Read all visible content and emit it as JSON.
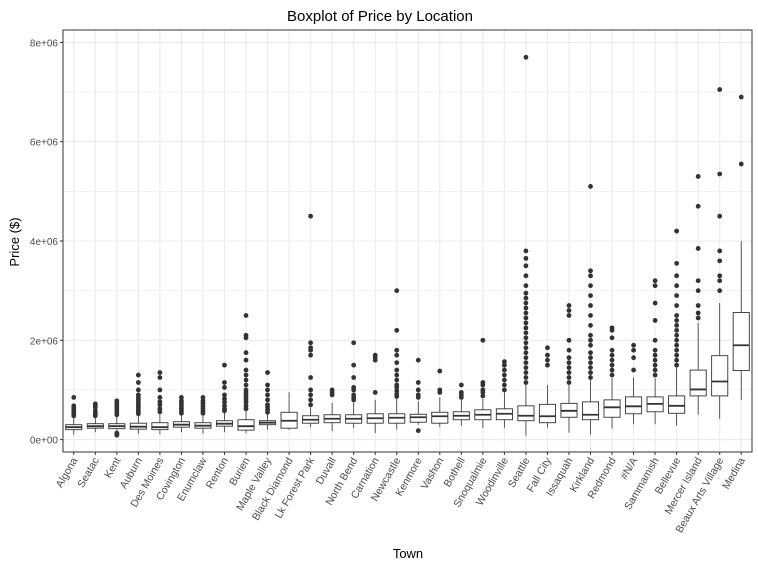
{
  "chart_data": {
    "type": "boxplot",
    "title": "Boxplot of Price by Location",
    "xlabel": "Town",
    "ylabel": "Price ($)",
    "ylim": [
      -250000,
      8250000
    ],
    "yticks": [
      0,
      2000000,
      4000000,
      6000000,
      8000000
    ],
    "ytick_labels": [
      "0e+00",
      "2e+06",
      "4e+06",
      "6e+06",
      "8e+06"
    ],
    "grid": true,
    "colors": {
      "box": "#333333",
      "outlier": "#333333",
      "grid": "#ebebeb",
      "panel_border": "#333333"
    },
    "categories": [
      "Algona",
      "Seatac",
      "Kent",
      "Auburn",
      "Des Moines",
      "Covington",
      "Enumclaw",
      "Renton",
      "Burien",
      "Maple Valley",
      "Black Diamond",
      "Lk Forest Park",
      "Duvall",
      "North Bend",
      "Carnation",
      "Newcastle",
      "Kenmore",
      "Vashon",
      "Bothell",
      "Snoqualmie",
      "Woodinville",
      "Seattle",
      "Fall City",
      "Issaquah",
      "Kirkland",
      "Redmond",
      "#N/A",
      "Sammamish",
      "Bellevue",
      "Mercer Island",
      "Beaux Arts Village",
      "Medina"
    ],
    "boxes": [
      {
        "lo": 100000,
        "q1": 200000,
        "med": 250000,
        "q3": 300000,
        "hi": 440000,
        "out": [
          480000,
          520000,
          560000,
          600000,
          640000,
          680000,
          850000
        ]
      },
      {
        "lo": 150000,
        "q1": 230000,
        "med": 270000,
        "q3": 320000,
        "hi": 450000,
        "out": [
          480000,
          530000,
          580000,
          650000,
          700000,
          720000
        ]
      },
      {
        "lo": 180000,
        "q1": 220000,
        "med": 270000,
        "q3": 320000,
        "hi": 470000,
        "out": [
          90000,
          110000,
          130000,
          500000,
          550000,
          600000,
          650000,
          700000,
          750000,
          780000
        ]
      },
      {
        "lo": 120000,
        "q1": 210000,
        "med": 260000,
        "q3": 330000,
        "hi": 500000,
        "out": [
          520000,
          560000,
          600000,
          650000,
          700000,
          750000,
          800000,
          850000,
          900000,
          1000000,
          1150000,
          1300000
        ]
      },
      {
        "lo": 110000,
        "q1": 200000,
        "med": 250000,
        "q3": 340000,
        "hi": 540000,
        "out": [
          560000,
          620000,
          700000,
          760000,
          850000,
          1000000,
          1250000,
          1350000
        ]
      },
      {
        "lo": 150000,
        "q1": 250000,
        "med": 300000,
        "q3": 360000,
        "hi": 510000,
        "out": [
          530000,
          580000,
          630000,
          680000,
          730000,
          780000,
          850000
        ]
      },
      {
        "lo": 120000,
        "q1": 230000,
        "med": 280000,
        "q3": 340000,
        "hi": 510000,
        "out": [
          530000,
          580000,
          630000,
          680000,
          730000,
          780000,
          850000
        ]
      },
      {
        "lo": 150000,
        "q1": 270000,
        "med": 320000,
        "q3": 380000,
        "hi": 550000,
        "out": [
          580000,
          620000,
          680000,
          750000,
          820000,
          900000,
          1050000,
          1150000,
          1500000
        ]
      },
      {
        "lo": 130000,
        "q1": 190000,
        "med": 270000,
        "q3": 400000,
        "hi": 600000,
        "out": [
          620000,
          680000,
          750000,
          800000,
          850000,
          900000,
          950000,
          1000000,
          1100000,
          1200000,
          1300000,
          1400000,
          1600000,
          1750000,
          2050000,
          2100000,
          2500000
        ]
      },
      {
        "lo": 200000,
        "q1": 300000,
        "med": 340000,
        "q3": 380000,
        "hi": 520000,
        "out": [
          550000,
          600000,
          650000,
          700000,
          800000,
          900000,
          1000000,
          1100000,
          1350000
        ]
      },
      {
        "lo": 200000,
        "q1": 230000,
        "med": 380000,
        "q3": 550000,
        "hi": 950000,
        "out": []
      },
      {
        "lo": 250000,
        "q1": 330000,
        "med": 400000,
        "q3": 480000,
        "hi": 650000,
        "out": [
          700000,
          800000,
          900000,
          1000000,
          1250000,
          1700000,
          1800000,
          1850000,
          1950000,
          4500000
        ]
      },
      {
        "lo": 170000,
        "q1": 340000,
        "med": 420000,
        "q3": 500000,
        "hi": 740000,
        "out": [
          900000,
          950000,
          1000000
        ]
      },
      {
        "lo": 230000,
        "q1": 330000,
        "med": 420000,
        "q3": 500000,
        "hi": 750000,
        "out": [
          800000,
          850000,
          900000,
          1000000,
          1050000,
          1250000,
          1500000,
          1950000
        ]
      },
      {
        "lo": 130000,
        "q1": 330000,
        "med": 430000,
        "q3": 520000,
        "hi": 800000,
        "out": [
          950000,
          1600000,
          1650000,
          1700000
        ]
      },
      {
        "lo": 200000,
        "q1": 330000,
        "med": 440000,
        "q3": 520000,
        "hi": 830000,
        "out": [
          870000,
          920000,
          980000,
          1050000,
          1100000,
          1200000,
          1300000,
          1400000,
          1550000,
          1700000,
          1800000,
          2200000,
          3000000
        ]
      },
      {
        "lo": 300000,
        "q1": 350000,
        "med": 450000,
        "q3": 510000,
        "hi": 770000,
        "out": [
          180000,
          850000,
          900000,
          1000000,
          1150000,
          1600000
        ]
      },
      {
        "lo": 250000,
        "q1": 330000,
        "med": 470000,
        "q3": 550000,
        "hi": 850000,
        "out": [
          950000,
          1000000,
          1380000
        ]
      },
      {
        "lo": 280000,
        "q1": 400000,
        "med": 480000,
        "q3": 560000,
        "hi": 800000,
        "out": [
          850000,
          900000,
          950000,
          1100000
        ]
      },
      {
        "lo": 230000,
        "q1": 400000,
        "med": 500000,
        "q3": 600000,
        "hi": 820000,
        "out": [
          880000,
          950000,
          1000000,
          1100000,
          1150000,
          2000000
        ]
      },
      {
        "lo": 240000,
        "q1": 400000,
        "med": 520000,
        "q3": 620000,
        "hi": 950000,
        "out": [
          1000000,
          1100000,
          1200000,
          1300000,
          1400000,
          1500000,
          1570000
        ]
      },
      {
        "lo": 80000,
        "q1": 380000,
        "med": 480000,
        "q3": 680000,
        "hi": 1130000,
        "out": [
          1150000,
          1250000,
          1350000,
          1450000,
          1550000,
          1650000,
          1750000,
          1850000,
          1950000,
          2050000,
          2150000,
          2250000,
          2350000,
          2450000,
          2550000,
          2650000,
          2750000,
          2850000,
          2950000,
          3100000,
          3300000,
          3500000,
          3650000,
          3800000,
          7700000
        ]
      },
      {
        "lo": 240000,
        "q1": 340000,
        "med": 470000,
        "q3": 710000,
        "hi": 1100000,
        "out": [
          1500000,
          1600000,
          1700000,
          1850000
        ]
      },
      {
        "lo": 140000,
        "q1": 450000,
        "med": 580000,
        "q3": 730000,
        "hi": 1100000,
        "out": [
          1150000,
          1250000,
          1350000,
          1450000,
          1550000,
          1650000,
          1800000,
          2000000,
          2500000,
          2600000,
          2700000
        ]
      },
      {
        "lo": 100000,
        "q1": 400000,
        "med": 500000,
        "q3": 760000,
        "hi": 1200000,
        "out": [
          1250000,
          1350000,
          1450000,
          1550000,
          1650000,
          1750000,
          1900000,
          2000000,
          2100000,
          2300000,
          2500000,
          2700000,
          2900000,
          3100000,
          3300000,
          3400000,
          5100000
        ]
      },
      {
        "lo": 220000,
        "q1": 450000,
        "med": 650000,
        "q3": 800000,
        "hi": 1240000,
        "out": [
          1300000,
          1400000,
          1500000,
          1600000,
          1700000,
          1800000,
          2050000,
          2200000,
          2250000
        ]
      },
      {
        "lo": 310000,
        "q1": 520000,
        "med": 670000,
        "q3": 860000,
        "hi": 1250000,
        "out": [
          1400000,
          1650000,
          1800000,
          1900000
        ]
      },
      {
        "lo": 310000,
        "q1": 560000,
        "med": 720000,
        "q3": 860000,
        "hi": 1230000,
        "out": [
          1300000,
          1400000,
          1500000,
          1600000,
          1700000,
          1800000,
          2000000,
          2400000,
          2750000,
          3100000,
          3200000
        ]
      },
      {
        "lo": 280000,
        "q1": 530000,
        "med": 680000,
        "q3": 880000,
        "hi": 1450000,
        "out": [
          1500000,
          1600000,
          1700000,
          1800000,
          1900000,
          2000000,
          2100000,
          2200000,
          2300000,
          2400000,
          2500000,
          2700000,
          2900000,
          3100000,
          3300000,
          3550000,
          4200000
        ]
      },
      {
        "lo": 500000,
        "q1": 880000,
        "med": 1010000,
        "q3": 1400000,
        "hi": 2350000,
        "out": [
          2450000,
          2550000,
          2700000,
          3000000,
          3200000,
          3850000,
          4700000,
          5300000
        ]
      },
      {
        "lo": 420000,
        "q1": 880000,
        "med": 1170000,
        "q3": 1690000,
        "hi": 2750000,
        "out": [
          3000000,
          3200000,
          3300000,
          3600000,
          3800000,
          4500000,
          5350000,
          7050000
        ]
      },
      {
        "lo": 800000,
        "q1": 1390000,
        "med": 1900000,
        "q3": 2560000,
        "hi": 4000000,
        "out": [
          5550000,
          6900000
        ]
      }
    ]
  }
}
